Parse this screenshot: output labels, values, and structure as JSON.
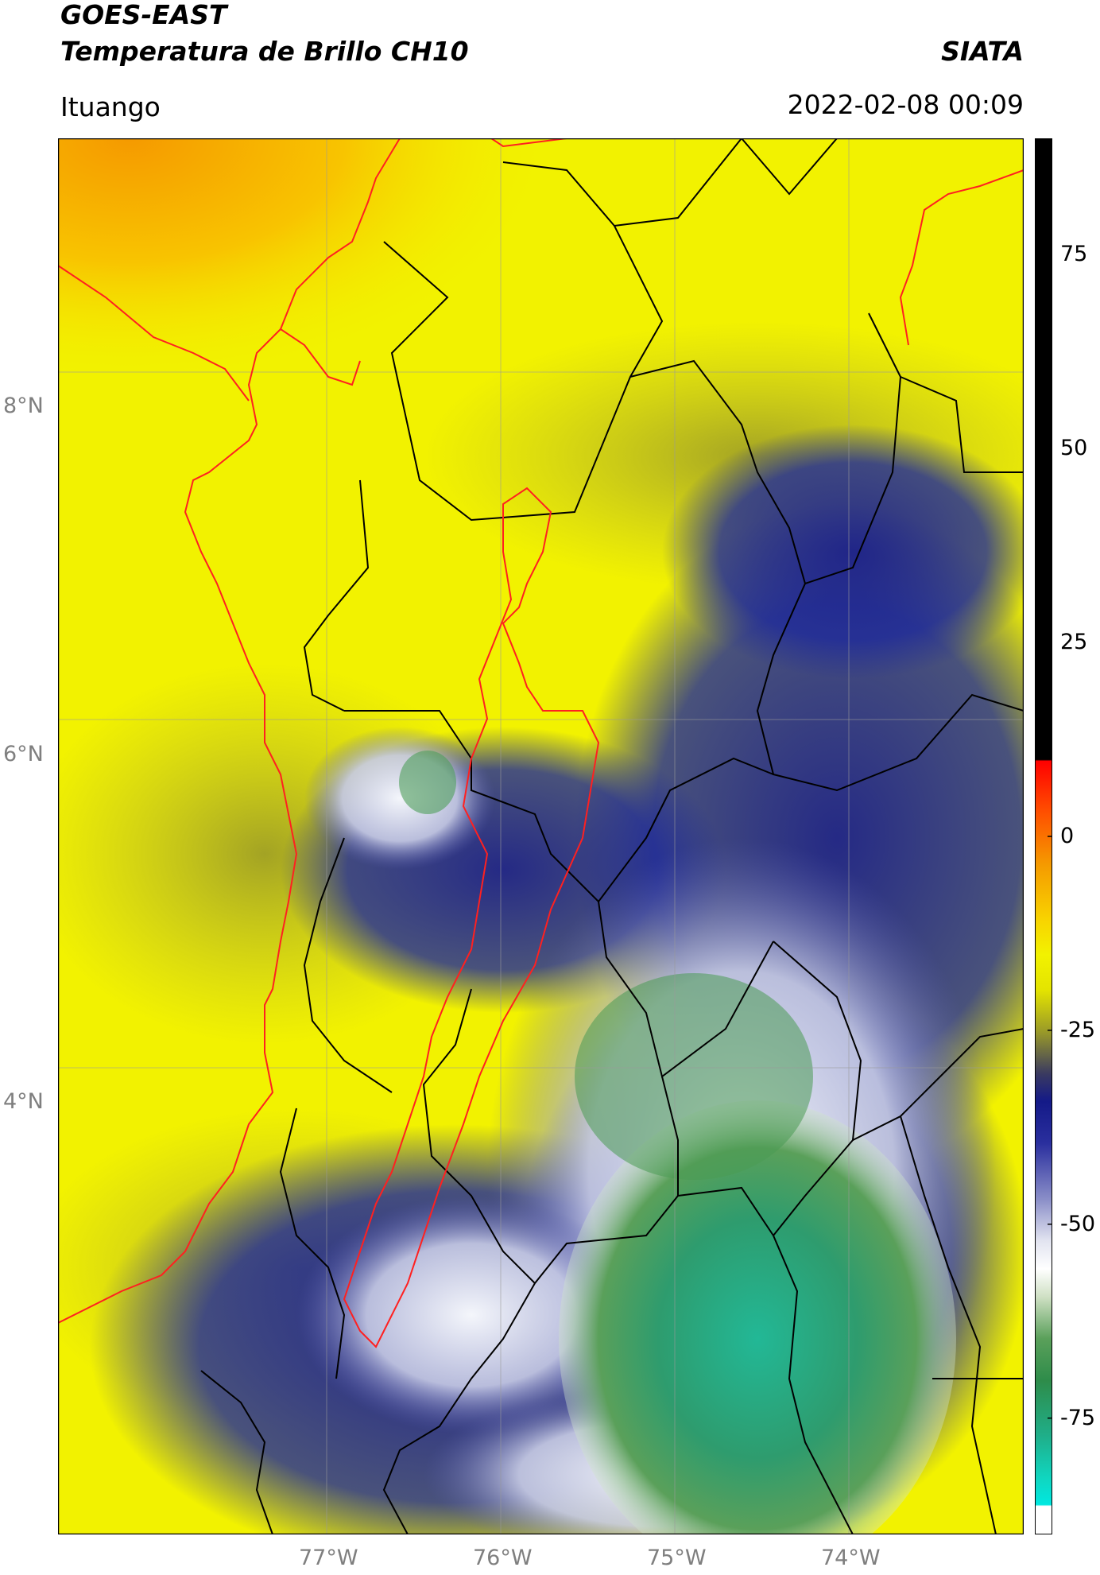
{
  "header": {
    "satellite": "GOES-EAST",
    "product": "Temperatura de Brillo CH10",
    "organization": "SIATA",
    "location": "Ituango",
    "datetime": "2022-02-08 00:09"
  },
  "map": {
    "lon_range": [
      -78.55,
      -73.0
    ],
    "lat_range": [
      1.55,
      9.35
    ],
    "lat_ticks": [
      {
        "value": 8,
        "label": "8°N"
      },
      {
        "value": 6,
        "label": "6°N"
      },
      {
        "value": 4,
        "label": "4°N"
      }
    ],
    "lon_ticks": [
      {
        "value": -77,
        "label": "77°W"
      },
      {
        "value": -76,
        "label": "76°W"
      },
      {
        "value": -75,
        "label": "75°W"
      },
      {
        "value": -74,
        "label": "74°W"
      }
    ],
    "colors": {
      "clear_sky": "#f2f200",
      "warm_caribbean": "#f7a800",
      "mid_cloud": "#a8a830",
      "cold_cloud": "#1a1f8c",
      "very_cold": "#e9ecf4",
      "coldest_green": "#3c9a4a",
      "coldest_teal": "#1fbf9a",
      "highlight_boundary": "#ff2020",
      "boundaries": "#000000"
    }
  },
  "colorbar": {
    "range": [
      -90,
      90
    ],
    "ticks": [
      {
        "value": 75,
        "label": "75"
      },
      {
        "value": 50,
        "label": "50"
      },
      {
        "value": 25,
        "label": "25"
      },
      {
        "value": 0,
        "label": "0"
      },
      {
        "value": -25,
        "label": "-25"
      },
      {
        "value": -50,
        "label": "-50"
      },
      {
        "value": -75,
        "label": "-75"
      }
    ]
  }
}
